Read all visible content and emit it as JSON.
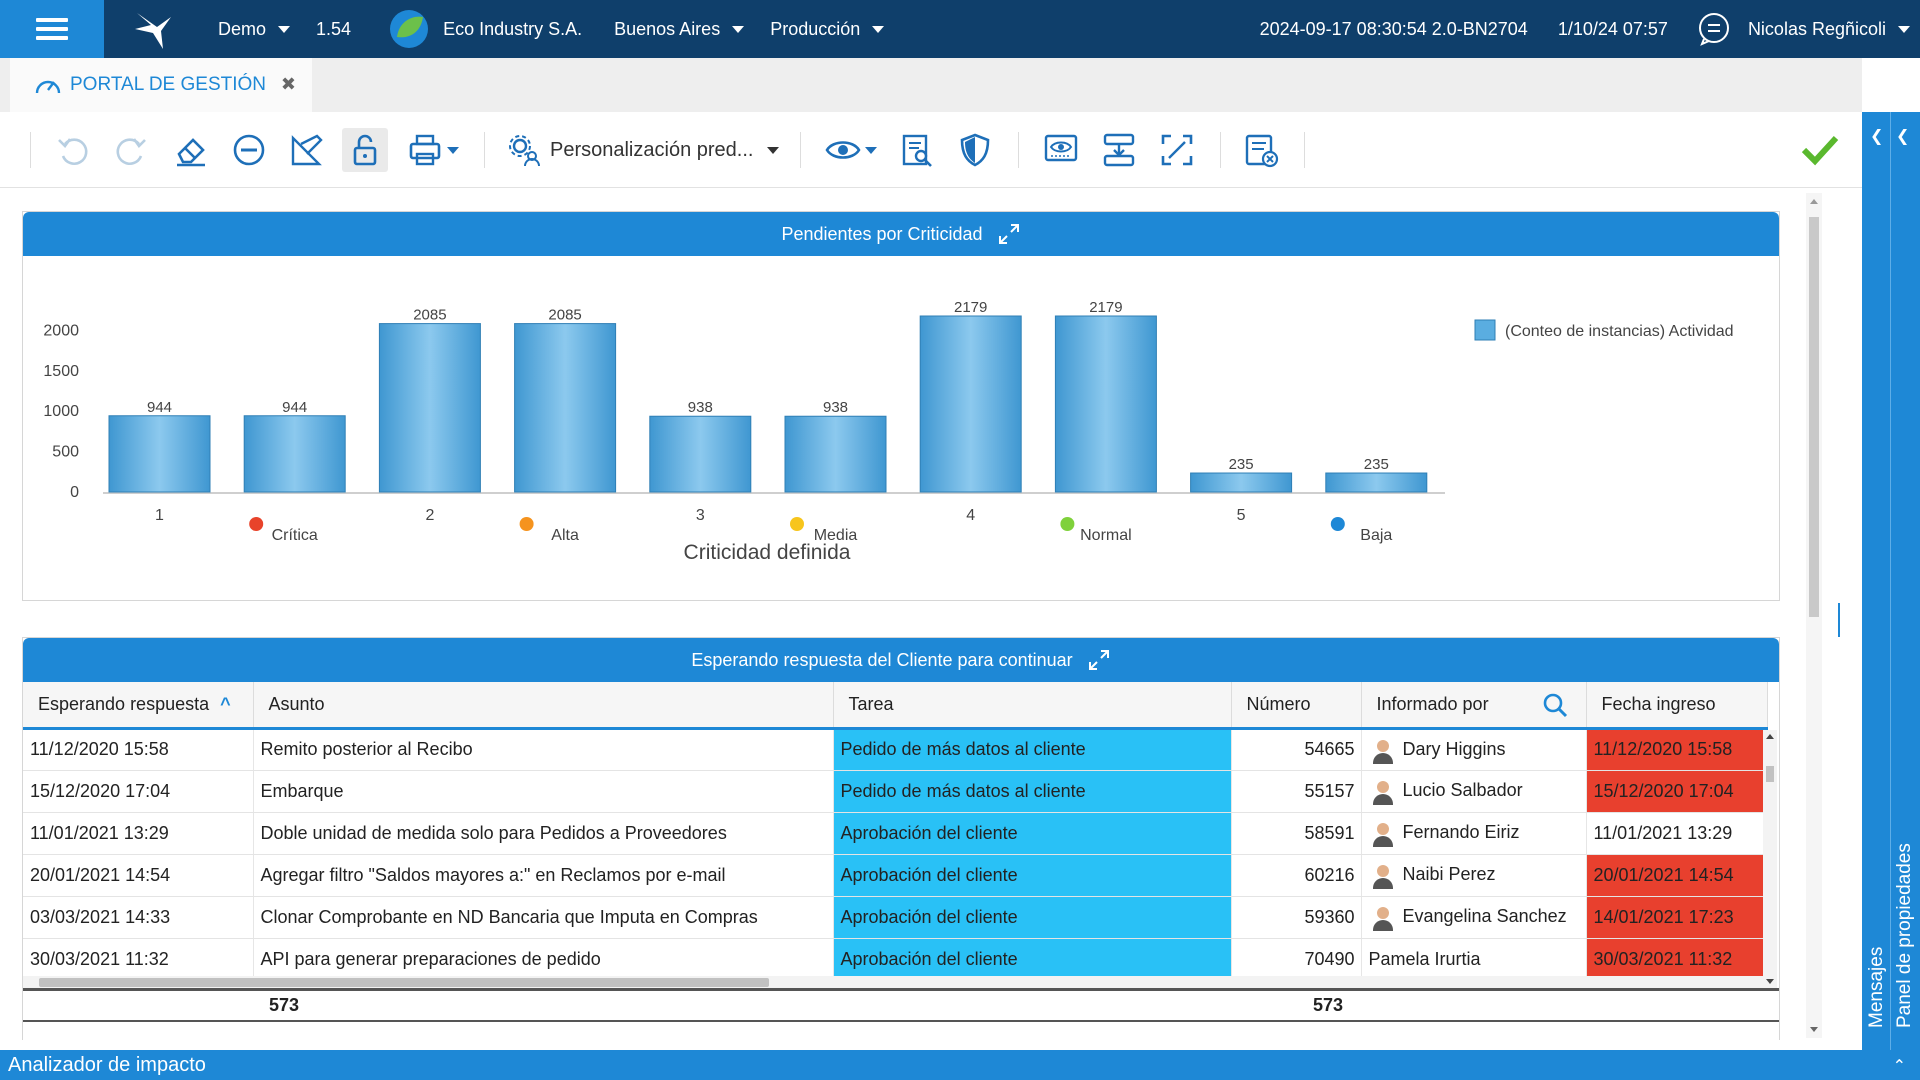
{
  "topbar": {
    "environment": "Demo",
    "version": "1.54",
    "company": "Eco Industry S.A.",
    "city": "Buenos Aires",
    "mode": "Producción",
    "build": "2024-09-17 08:30:54 2.0-BN2704",
    "datetime": "1/10/24 07:57",
    "user": "Nicolas Regñicoli"
  },
  "tab": {
    "label": "PORTAL DE GESTIÓN",
    "close": "✖"
  },
  "toolbar": {
    "personalization": "Personalización pred..."
  },
  "right_panel": {
    "messages": "Mensajes",
    "properties": "Panel de propiedades"
  },
  "bottom_bar": {
    "label": "Analizador de impacto"
  },
  "colors": {
    "brand_dark": "#0f3f6b",
    "accent": "#1e88d6",
    "task_cell": "#29c1f6",
    "late_cell": "#e8402e",
    "bar": "#5aade0"
  },
  "chart_panel": {
    "title": "Pendientes por Criticidad"
  },
  "chart_data": {
    "type": "bar",
    "title": "Pendientes por Criticidad",
    "xlabel": "Criticidad definida",
    "ylabel": "",
    "ylim": [
      0,
      2179
    ],
    "yticks": [
      "0",
      "500",
      "1000",
      "1500",
      "2000"
    ],
    "categories": [
      "1",
      "Crítica",
      "2",
      "Alta",
      "3",
      "Media",
      "4",
      "Normal",
      "5",
      "Baja"
    ],
    "category_dots": [
      "",
      "#e8432a",
      "",
      "#f5931e",
      "",
      "#f7c51c",
      "",
      "#7fd13b",
      "",
      "#1e88d6"
    ],
    "series": [
      {
        "name": "(Conteo de instancias) Actividad",
        "values": [
          944,
          944,
          2085,
          2085,
          938,
          938,
          2179,
          2179,
          235,
          235
        ]
      }
    ],
    "legend_position": "top-right",
    "grid": false
  },
  "table_panel": {
    "title": "Esperando respuesta del Cliente para continuar",
    "sort_indicator": "^",
    "columns": [
      "Esperando respuesta",
      "Asunto",
      "Tarea",
      "Número",
      "Informado por",
      "Fecha ingreso"
    ],
    "rows": [
      {
        "esperando": "11/12/2020 15:58",
        "asunto": "Remito posterior al Recibo",
        "tarea": "Pedido de más datos al cliente",
        "numero": "54665",
        "informado": "Dary Higgins",
        "fecha": "11/12/2020 15:58",
        "late": true,
        "avatar": true
      },
      {
        "esperando": "15/12/2020 17:04",
        "asunto": "Embarque",
        "tarea": "Pedido de más datos al cliente",
        "numero": "55157",
        "informado": "Lucio Salbador",
        "fecha": "15/12/2020 17:04",
        "late": true,
        "avatar": true
      },
      {
        "esperando": "11/01/2021 13:29",
        "asunto": "Doble unidad de medida solo para Pedidos a Proveedores",
        "tarea": "Aprobación del cliente",
        "numero": "58591",
        "informado": "Fernando Eiriz",
        "fecha": "11/01/2021 13:29",
        "late": false,
        "avatar": true
      },
      {
        "esperando": "20/01/2021 14:54",
        "asunto": "Agregar filtro \"Saldos mayores a:\" en Reclamos por e-mail",
        "tarea": "Aprobación del cliente",
        "numero": "60216",
        "informado": "Naibi Perez",
        "fecha": "20/01/2021 14:54",
        "late": true,
        "avatar": true
      },
      {
        "esperando": "03/03/2021 14:33",
        "asunto": "Clonar Comprobante en ND Bancaria que Imputa en Compras",
        "tarea": "Aprobación del cliente",
        "numero": "59360",
        "informado": "Evangelina Sanchez",
        "fecha": "14/01/2021 17:23",
        "late": true,
        "avatar": true
      },
      {
        "esperando": "30/03/2021 11:32",
        "asunto": "API para generar preparaciones de pedido",
        "tarea": "Aprobación del cliente",
        "numero": "70490",
        "informado": "Pamela Irurtia",
        "fecha": "30/03/2021 11:32",
        "late": true,
        "avatar": false
      }
    ],
    "totals": {
      "esperando": "573",
      "numero": "573"
    }
  }
}
